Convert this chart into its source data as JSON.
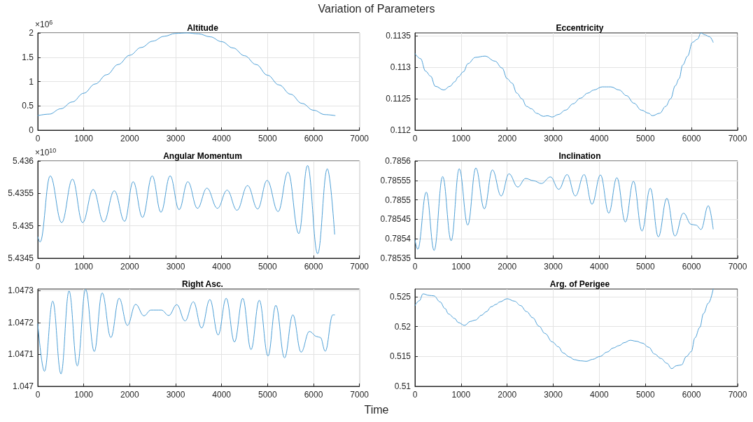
{
  "chart_data": [
    {
      "type": "line",
      "title": "Altitude",
      "ylabel": "×10$^{6}$",
      "annotations": [
        "Variation of Parameters"
      ],
      "color": "#4d9fd6",
      "grid": true,
      "marker": "none",
      "line_style": "solid",
      "xlim": [
        0,
        7000
      ],
      "xticks": [
        0,
        1000,
        2000,
        3000,
        4000,
        5000,
        6000,
        7000
      ],
      "ylim": [
        0,
        2
      ],
      "yticks": [
        0,
        0.5,
        1,
        1.5,
        2
      ],
      "x": [
        0,
        250,
        500,
        750,
        1000,
        1250,
        1500,
        1750,
        2000,
        2250,
        2500,
        2750,
        3000,
        3250,
        3500,
        3750,
        4000,
        4250,
        4500,
        4750,
        5000,
        5250,
        5500,
        5750,
        6000,
        6250,
        6470
      ],
      "values": [
        0.3,
        0.33,
        0.44,
        0.58,
        0.76,
        0.95,
        1.14,
        1.35,
        1.54,
        1.7,
        1.83,
        1.93,
        1.99,
        2.0,
        1.98,
        1.92,
        1.82,
        1.69,
        1.53,
        1.35,
        1.13,
        0.93,
        0.74,
        0.55,
        0.41,
        0.32,
        0.3
      ]
    },
    {
      "type": "line",
      "title": "Eccentricity",
      "color": "#4d9fd6",
      "grid": true,
      "marker": "none",
      "line_style": "solid",
      "xlim": [
        0,
        7000
      ],
      "xticks": [
        0,
        1000,
        2000,
        3000,
        4000,
        5000,
        6000,
        7000
      ],
      "ylim": [
        0.112,
        0.11355
      ],
      "yticks": [
        0.112,
        0.1125,
        0.113,
        0.1135
      ],
      "x": [
        0,
        120,
        230,
        340,
        440,
        625,
        760,
        860,
        940,
        1050,
        1150,
        1310,
        1520,
        1735,
        1890,
        2000,
        2105,
        2210,
        2320,
        2420,
        2530,
        2635,
        2790,
        2870,
        2980,
        3110,
        3270,
        3430,
        3590,
        3750,
        3880,
        4060,
        4250,
        4430,
        4590,
        4750,
        4910,
        5070,
        5150,
        5310,
        5440,
        5545,
        5650,
        5730,
        5810,
        5915,
        6020,
        6130,
        6205,
        6285,
        6390,
        6470
      ],
      "values": [
        0.11322,
        0.11314,
        0.11294,
        0.11286,
        0.1127,
        0.11264,
        0.1127,
        0.11277,
        0.11285,
        0.11293,
        0.11306,
        0.11316,
        0.11318,
        0.1131,
        0.11299,
        0.11282,
        0.11275,
        0.11259,
        0.1125,
        0.11238,
        0.11234,
        0.11227,
        0.11222,
        0.11223,
        0.11221,
        0.11225,
        0.11232,
        0.11242,
        0.11251,
        0.11259,
        0.11264,
        0.11269,
        0.11269,
        0.11264,
        0.11255,
        0.11243,
        0.11232,
        0.11227,
        0.11223,
        0.11227,
        0.11238,
        0.1125,
        0.11271,
        0.11282,
        0.11304,
        0.11318,
        0.1134,
        0.11345,
        0.11355,
        0.11352,
        0.11349,
        0.1134
      ]
    },
    {
      "type": "line",
      "title": "Angular Momentum",
      "ylabel": "×10$^{10}$",
      "color": "#4d9fd6",
      "grid": true,
      "marker": "none",
      "line_style": "solid",
      "xlim": [
        0,
        7000
      ],
      "xticks": [
        0,
        1000,
        2000,
        3000,
        4000,
        5000,
        6000,
        7000
      ],
      "ylim": [
        5.4345,
        5.436
      ],
      "yticks": [
        5.4345,
        5.435,
        5.4355,
        5.436
      ],
      "x": [
        0,
        50,
        270,
        520,
        755,
        975,
        1205,
        1435,
        1665,
        1890,
        2075,
        2280,
        2490,
        2680,
        2880,
        3075,
        3265,
        3475,
        3680,
        3910,
        4120,
        4335,
        4565,
        4785,
        4990,
        5230,
        5445,
        5680,
        5870,
        6090,
        6300,
        6460
      ],
      "values": [
        5.43483,
        5.43475,
        5.43577,
        5.43505,
        5.43572,
        5.43505,
        5.43556,
        5.43506,
        5.43554,
        5.43507,
        5.43568,
        5.43513,
        5.43577,
        5.43521,
        5.43577,
        5.43525,
        5.43568,
        5.43527,
        5.43558,
        5.43527,
        5.43555,
        5.43524,
        5.43562,
        5.43526,
        5.4357,
        5.43522,
        5.43583,
        5.43488,
        5.43593,
        5.43457,
        5.43588,
        5.43487
      ]
    },
    {
      "type": "line",
      "title": "Inclination",
      "color": "#4d9fd6",
      "grid": true,
      "marker": "none",
      "line_style": "solid",
      "xlim": [
        0,
        7000
      ],
      "xticks": [
        0,
        1000,
        2000,
        3000,
        4000,
        5000,
        6000,
        7000
      ],
      "ylim": [
        0.78535,
        0.7856
      ],
      "yticks": [
        0.78535,
        0.7854,
        0.78545,
        0.7855,
        0.78555,
        0.7856
      ],
      "x": [
        0,
        60,
        245,
        415,
        600,
        785,
        960,
        1145,
        1320,
        1505,
        1680,
        1870,
        2040,
        2230,
        2400,
        2580,
        2740,
        2940,
        3120,
        3300,
        3480,
        3670,
        3840,
        4025,
        4205,
        4380,
        4565,
        4740,
        4925,
        5105,
        5280,
        5465,
        5640,
        5825,
        5995,
        6100,
        6205,
        6365,
        6470
      ],
      "values": [
        0.785397,
        0.785373,
        0.78552,
        0.78537,
        0.78556,
        0.785395,
        0.78558,
        0.785435,
        0.785582,
        0.785477,
        0.785577,
        0.78551,
        0.785567,
        0.785533,
        0.785555,
        0.785549,
        0.785542,
        0.785559,
        0.785527,
        0.785565,
        0.78551,
        0.785565,
        0.785489,
        0.785564,
        0.785466,
        0.785557,
        0.785443,
        0.785548,
        0.78542,
        0.78553,
        0.785405,
        0.785504,
        0.785407,
        0.785466,
        0.785437,
        0.785435,
        0.785424,
        0.785485,
        0.785425
      ]
    },
    {
      "type": "line",
      "title": "Right Asc.",
      "color": "#4d9fd6",
      "grid": true,
      "marker": "none",
      "line_style": "solid",
      "xlim": [
        0,
        7000
      ],
      "xticks": [
        0,
        1000,
        2000,
        3000,
        4000,
        5000,
        6000,
        7000
      ],
      "ylim": [
        1.047,
        1.047305
      ],
      "yticks": [
        1.047,
        1.0471,
        1.0472,
        1.0473
      ],
      "x": [
        0,
        145,
        325,
        505,
        680,
        860,
        1040,
        1230,
        1400,
        1590,
        1770,
        1950,
        2130,
        2310,
        2460,
        2690,
        2850,
        3025,
        3205,
        3385,
        3565,
        3745,
        3925,
        4100,
        4280,
        4460,
        4640,
        4820,
        5010,
        5180,
        5370,
        5550,
        5730,
        5910,
        6075,
        6150,
        6255,
        6420,
        6460
      ],
      "values": [
        1.047196,
        1.047047,
        1.047267,
        1.047039,
        1.047299,
        1.047064,
        1.047304,
        1.047109,
        1.047293,
        1.047153,
        1.047276,
        1.047191,
        1.047257,
        1.047221,
        1.047239,
        1.047239,
        1.047222,
        1.047256,
        1.047205,
        1.047265,
        1.047183,
        1.047272,
        1.047161,
        1.047276,
        1.047139,
        1.047276,
        1.047115,
        1.04727,
        1.047095,
        1.047254,
        1.047089,
        1.047224,
        1.047107,
        1.047172,
        1.047156,
        1.047153,
        1.04711,
        1.047224,
        1.047224
      ]
    },
    {
      "type": "line",
      "title": "Arg. of Perigee",
      "annotations": [
        "Time"
      ],
      "color": "#4d9fd6",
      "grid": true,
      "marker": "none",
      "line_style": "solid",
      "xlim": [
        0,
        7000
      ],
      "xticks": [
        0,
        1000,
        2000,
        3000,
        4000,
        5000,
        6000,
        7000
      ],
      "ylim": [
        0.51,
        0.52626
      ],
      "yticks": [
        0.51,
        0.515,
        0.52,
        0.525
      ],
      "x": [
        0,
        95,
        175,
        305,
        410,
        545,
        650,
        730,
        860,
        940,
        1075,
        1205,
        1310,
        1445,
        1550,
        1655,
        1760,
        1840,
        2000,
        2160,
        2290,
        2420,
        2555,
        2690,
        2820,
        2980,
        3110,
        3215,
        3350,
        3455,
        3590,
        3720,
        3850,
        4010,
        4170,
        4300,
        4430,
        4540,
        4670,
        4800,
        4935,
        5070,
        5200,
        5335,
        5465,
        5570,
        5675,
        5780,
        5890,
        5995,
        6075,
        6180,
        6260,
        6365,
        6470
      ],
      "values": [
        0.5235,
        0.52431,
        0.52545,
        0.5252,
        0.52512,
        0.52411,
        0.52301,
        0.52208,
        0.52135,
        0.52066,
        0.52018,
        0.52086,
        0.52107,
        0.52188,
        0.52249,
        0.5233,
        0.5237,
        0.52411,
        0.52464,
        0.52423,
        0.5235,
        0.52249,
        0.52147,
        0.52005,
        0.51884,
        0.51742,
        0.51661,
        0.51559,
        0.51491,
        0.51446,
        0.51426,
        0.51418,
        0.5145,
        0.51499,
        0.51572,
        0.51641,
        0.51681,
        0.5173,
        0.5177,
        0.51754,
        0.51722,
        0.51653,
        0.51539,
        0.51466,
        0.51385,
        0.51296,
        0.51345,
        0.51357,
        0.51499,
        0.5158,
        0.51811,
        0.51985,
        0.52216,
        0.5239,
        0.52626
      ]
    }
  ]
}
